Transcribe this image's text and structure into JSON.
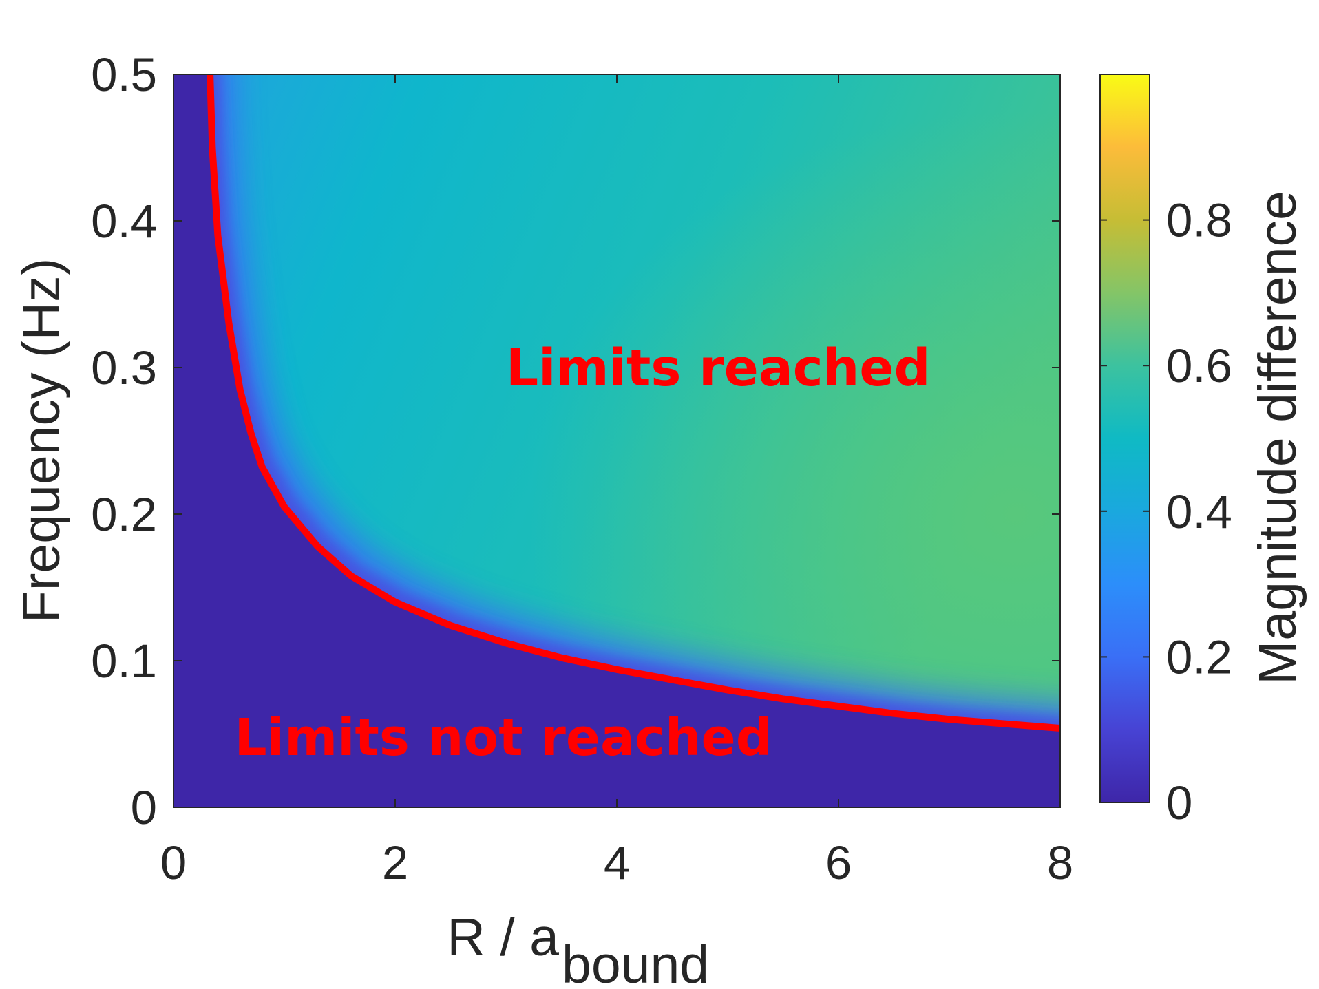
{
  "chart_data": {
    "type": "heatmap",
    "xlabel_main": "R / a",
    "xlabel_sub": "bound",
    "ylabel": "Frequency (Hz)",
    "xlim": [
      0,
      8
    ],
    "ylim": [
      0,
      0.5
    ],
    "xticks": [
      "0",
      "2",
      "4",
      "6",
      "8"
    ],
    "yticks": [
      "0",
      "0.1",
      "0.2",
      "0.3",
      "0.4",
      "0.5"
    ],
    "colorbar": {
      "label": "Magnitude difference",
      "lim": [
        0,
        1
      ],
      "ticks": [
        "0",
        "0.2",
        "0.4",
        "0.6",
        "0.8"
      ],
      "colormap": "parula"
    },
    "boundary_curve": {
      "color": "#ff0000",
      "x": [
        0.33,
        0.35,
        0.4,
        0.5,
        0.6,
        0.7,
        0.8,
        1.0,
        1.3,
        1.6,
        2.0,
        2.5,
        3.0,
        3.5,
        4.0,
        4.5,
        5.0,
        5.5,
        6.0,
        6.5,
        7.0,
        7.5,
        8.0
      ],
      "y": [
        0.5,
        0.45,
        0.39,
        0.33,
        0.285,
        0.255,
        0.232,
        0.205,
        0.178,
        0.158,
        0.14,
        0.124,
        0.112,
        0.102,
        0.094,
        0.087,
        0.08,
        0.074,
        0.069,
        0.064,
        0.06,
        0.057,
        0.054
      ]
    },
    "annotations": [
      {
        "text": "Limits reached",
        "x": 3.0,
        "y": 0.3
      },
      {
        "text": "Limits not reached",
        "x": 0.55,
        "y": 0.048
      }
    ]
  }
}
